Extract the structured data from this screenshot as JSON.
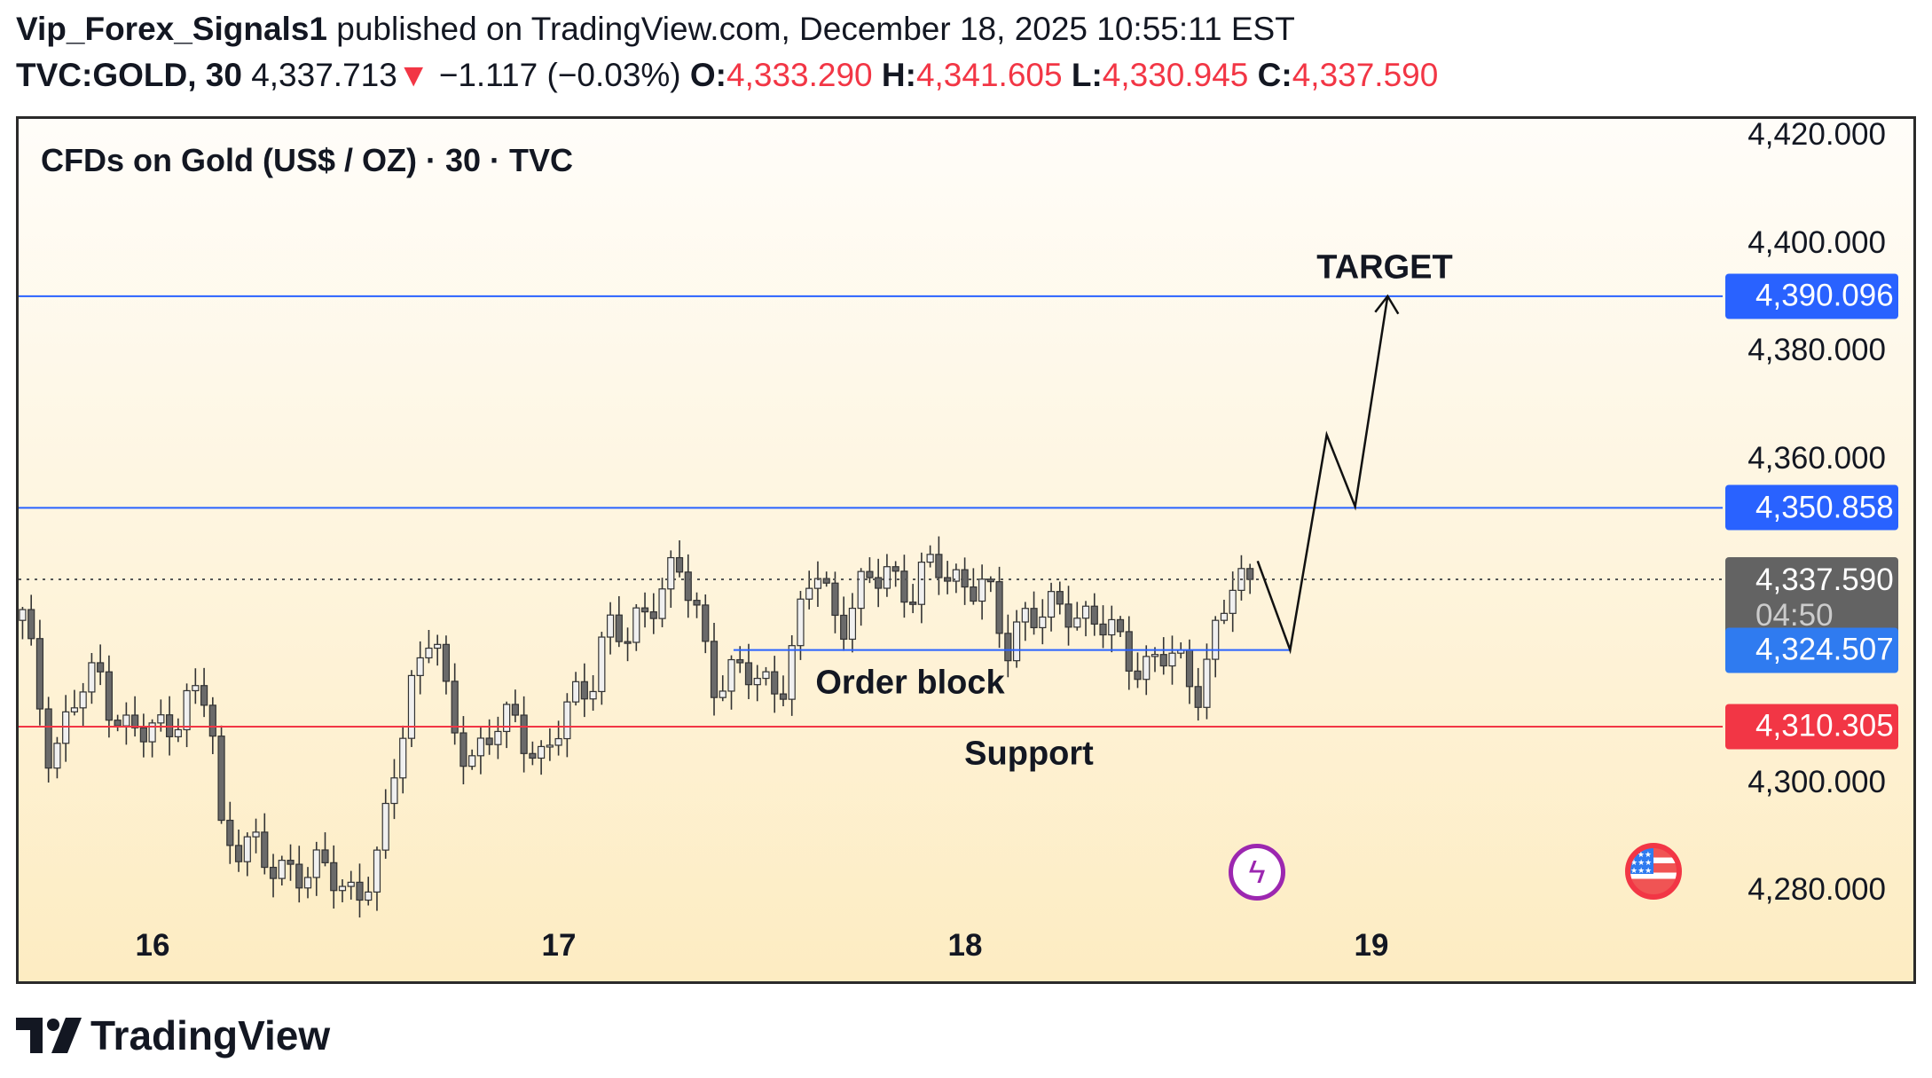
{
  "header": {
    "author": "Vip_Forex_Signals1",
    "published": "published on TradingView.com, December 18, 2025 10:55:11 EST",
    "symbol": "TVC:GOLD, 30",
    "last": "4,337.713",
    "change": "−1.117 (−0.03%)",
    "o_label": "O:",
    "o": "4,333.290",
    "h_label": "H:",
    "h": "4,341.605",
    "l_label": "L:",
    "l": "4,330.945",
    "c_label": "C:",
    "c": "4,337.590"
  },
  "colors": {
    "up_line": "#2962ff",
    "support": "#f23645",
    "badge_blue": "#2f7bf0",
    "badge_red": "#f23645",
    "current": "#636363"
  },
  "chart_data": {
    "type": "candlestick",
    "title": "CFDs on Gold (US$ / OZ) · 30 · TVC",
    "ylim": [
      4270,
      4428
    ],
    "y_ticks": [
      {
        "v": 4420,
        "label": "4,420.000"
      },
      {
        "v": 4400,
        "label": "4,400.000"
      },
      {
        "v": 4380,
        "label": "4,380.000"
      },
      {
        "v": 4360,
        "label": "4,360.000"
      },
      {
        "v": 4300,
        "label": "4,300.000"
      },
      {
        "v": 4280,
        "label": "4,280.000"
      }
    ],
    "x_ticks": [
      {
        "v": 16,
        "label": "16"
      },
      {
        "v": 17,
        "label": "17"
      },
      {
        "v": 18,
        "label": "18"
      },
      {
        "v": 19,
        "label": "19"
      }
    ],
    "xlim": [
      15.67,
      19.7
    ],
    "approx_close_path": [
      [
        15.68,
        4330
      ],
      [
        15.75,
        4305
      ],
      [
        15.81,
        4315
      ],
      [
        15.87,
        4320
      ],
      [
        15.93,
        4310
      ],
      [
        15.99,
        4308
      ],
      [
        16.08,
        4315
      ],
      [
        16.14,
        4315
      ],
      [
        16.17,
        4290
      ],
      [
        16.23,
        4290
      ],
      [
        16.28,
        4283
      ],
      [
        16.35,
        4285
      ],
      [
        16.41,
        4283
      ],
      [
        16.5,
        4280
      ],
      [
        16.56,
        4285
      ],
      [
        16.59,
        4300
      ],
      [
        16.64,
        4320
      ],
      [
        16.69,
        4330
      ],
      [
        16.73,
        4310
      ],
      [
        16.78,
        4305
      ],
      [
        16.84,
        4310
      ],
      [
        16.9,
        4310
      ],
      [
        16.96,
        4305
      ],
      [
        17.02,
        4312
      ],
      [
        17.08,
        4320
      ],
      [
        17.12,
        4330
      ],
      [
        17.17,
        4325
      ],
      [
        17.23,
        4335
      ],
      [
        17.29,
        4340
      ],
      [
        17.34,
        4330
      ],
      [
        17.38,
        4320
      ],
      [
        17.44,
        4320
      ],
      [
        17.5,
        4318
      ],
      [
        17.56,
        4320
      ],
      [
        17.63,
        4340
      ],
      [
        17.69,
        4330
      ],
      [
        17.75,
        4335
      ],
      [
        17.81,
        4340
      ],
      [
        17.87,
        4335
      ],
      [
        17.93,
        4340
      ],
      [
        17.99,
        4338
      ],
      [
        18.05,
        4335
      ],
      [
        18.1,
        4325
      ],
      [
        18.14,
        4332
      ],
      [
        18.2,
        4330
      ],
      [
        18.26,
        4333
      ],
      [
        18.32,
        4330
      ],
      [
        18.38,
        4325
      ],
      [
        18.44,
        4322
      ],
      [
        18.5,
        4323
      ],
      [
        18.57,
        4318
      ],
      [
        18.63,
        4330
      ],
      [
        18.66,
        4336
      ],
      [
        18.72,
        4337.59
      ]
    ],
    "levels": [
      {
        "name": "target",
        "price": 4390.096,
        "label": "4,390.096"
      },
      {
        "name": "resistance",
        "price": 4350.858,
        "label": "4,350.858"
      },
      {
        "name": "order-block",
        "price": 4324.507,
        "label": "4,324.507",
        "from": 17.43,
        "to": 18.8
      },
      {
        "name": "support",
        "price": 4310.305,
        "label": "4,310.305"
      }
    ],
    "current": {
      "price": 4337.59,
      "label": "4,337.590",
      "countdown": "04:50"
    },
    "projection": [
      [
        18.72,
        4341
      ],
      [
        18.8,
        4324.5
      ],
      [
        18.89,
        4364.4
      ],
      [
        18.96,
        4351.1
      ],
      [
        19.04,
        4390.1
      ]
    ],
    "annotations": {
      "target": "TARGET",
      "order_block": "Order block",
      "support": "Support"
    }
  },
  "footer": {
    "logo": "TradingView"
  }
}
